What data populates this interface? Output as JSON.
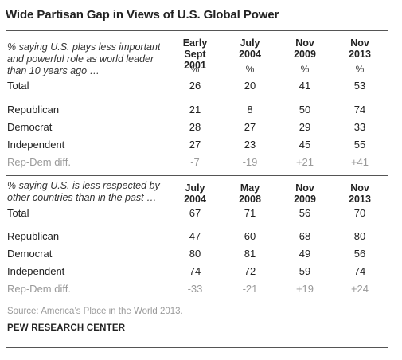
{
  "title": "Wide Partisan Gap in Views of U.S. Global Power",
  "section1": {
    "prompt": [
      "% saying U.S. plays less important",
      "and powerful role as world leader",
      "than 10 years ago …"
    ],
    "columns": [
      {
        "line1": "Early Sept",
        "line2": "2001"
      },
      {
        "line1": "July",
        "line2": "2004"
      },
      {
        "line1": "Nov",
        "line2": "2009"
      },
      {
        "line1": "Nov",
        "line2": "2013"
      }
    ],
    "pct_sign": "%",
    "rows": [
      {
        "label": "Total",
        "values": [
          "26",
          "20",
          "41",
          "53"
        ]
      },
      {
        "label": "Republican",
        "values": [
          "21",
          "8",
          "50",
          "74"
        ]
      },
      {
        "label": "Democrat",
        "values": [
          "28",
          "27",
          "29",
          "33"
        ]
      },
      {
        "label": "Independent",
        "values": [
          "27",
          "23",
          "45",
          "55"
        ]
      },
      {
        "label": "Rep-Dem diff.",
        "values": [
          "-7",
          "-19",
          "+21",
          "+41"
        ]
      }
    ]
  },
  "section2": {
    "prompt": [
      "% saying U.S. is less respected by",
      "other countries than in the past …"
    ],
    "columns": [
      {
        "line1": "July",
        "line2": "2004"
      },
      {
        "line1": "May",
        "line2": "2008"
      },
      {
        "line1": "Nov",
        "line2": "2009"
      },
      {
        "line1": "Nov",
        "line2": "2013"
      }
    ],
    "rows": [
      {
        "label": "Total",
        "values": [
          "67",
          "71",
          "56",
          "70"
        ]
      },
      {
        "label": "Republican",
        "values": [
          "47",
          "60",
          "68",
          "80"
        ]
      },
      {
        "label": "Democrat",
        "values": [
          "80",
          "81",
          "49",
          "56"
        ]
      },
      {
        "label": "Independent",
        "values": [
          "74",
          "72",
          "59",
          "74"
        ]
      },
      {
        "label": "Rep-Dem diff.",
        "values": [
          "-33",
          "-21",
          "+19",
          "+24"
        ]
      }
    ]
  },
  "source": "Source: America’s Place in the World 2013.",
  "org": "PEW RESEARCH CENTER"
}
